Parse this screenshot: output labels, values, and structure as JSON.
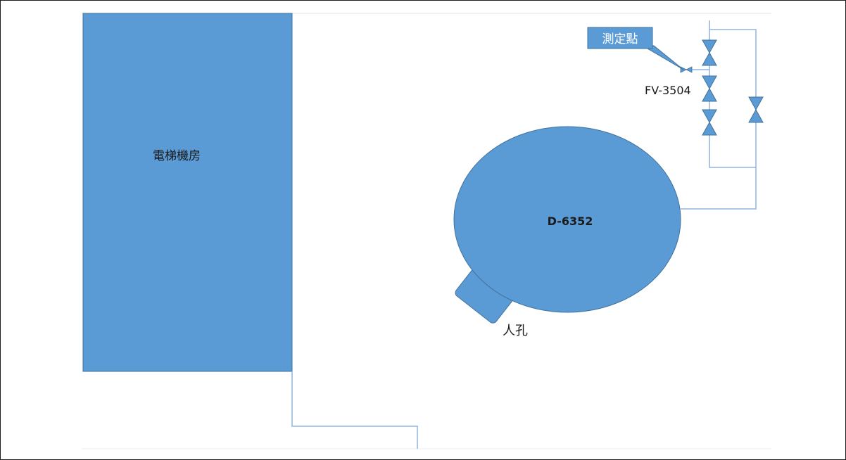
{
  "colors": {
    "fill": "#5b9bd5",
    "stroke": "#41719c",
    "line": "#8fb4dd",
    "text": "#1a1a1a",
    "callout_text": "#ffffff",
    "border": "#1f1f1f"
  },
  "labels": {
    "room": "電梯機房",
    "tank": "D-6352",
    "manhole": "人孔",
    "valve_tag": "FV-3504",
    "measure_point": "測定點"
  },
  "icons": {
    "valve": "gate-valve-icon"
  }
}
